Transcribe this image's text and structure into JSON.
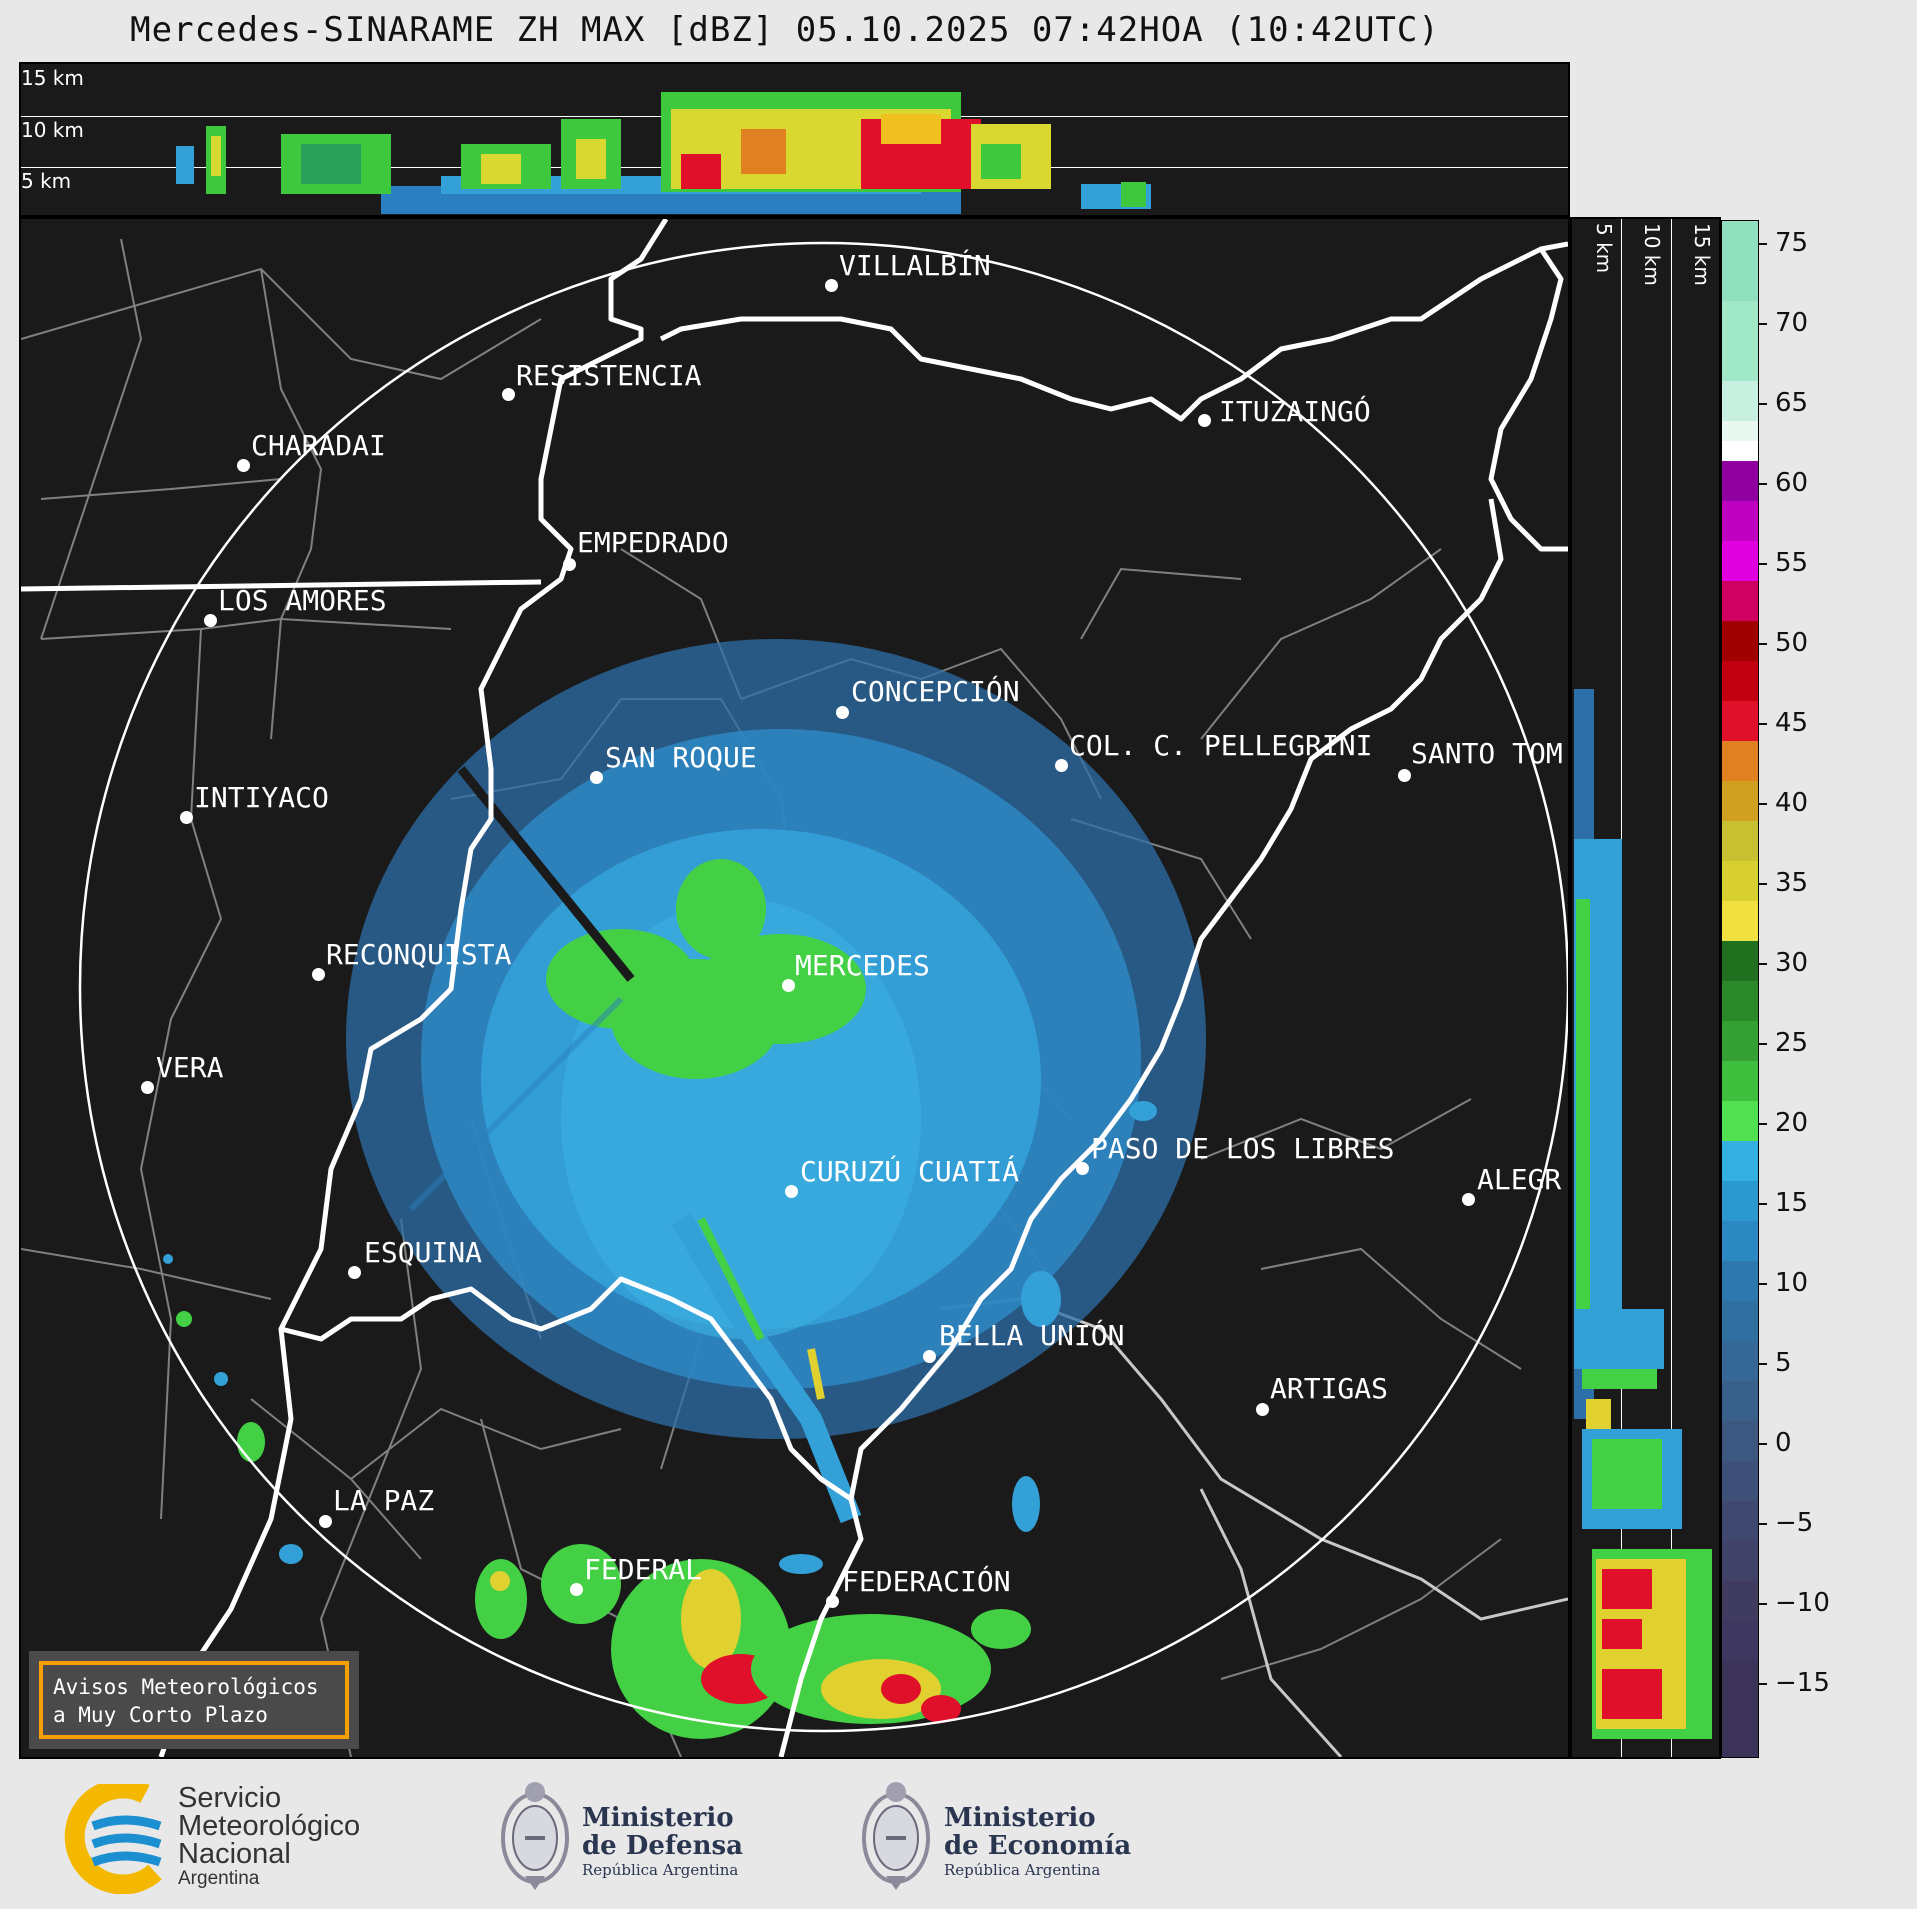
{
  "title": "Mercedes-SINARAME ZH MAX [dBZ] 05.10.2025 07:42HOA (10:42UTC)",
  "top_panel": {
    "height_labels": [
      "15 km",
      "10 km",
      "5 km"
    ]
  },
  "right_panel": {
    "height_labels": [
      "5 km",
      "10 km",
      "15 km"
    ]
  },
  "colorbar": {
    "unit": "dBZ",
    "ticks": [
      "75",
      "70",
      "65",
      "60",
      "55",
      "50",
      "45",
      "40",
      "35",
      "30",
      "25",
      "20",
      "15",
      "10",
      "5",
      "0",
      "−5",
      "−10",
      "−15"
    ]
  },
  "cities": [
    {
      "name": "VILLALBÍN"
    },
    {
      "name": "RESISTENCIA"
    },
    {
      "name": "CHARADAI"
    },
    {
      "name": "ITUZAINGÓ"
    },
    {
      "name": "EMPEDRADO"
    },
    {
      "name": "LOS AMORES"
    },
    {
      "name": "CONCEPCIÓN"
    },
    {
      "name": "SAN ROQUE"
    },
    {
      "name": "COL. C. PELLEGRINI"
    },
    {
      "name": "SANTO TOM"
    },
    {
      "name": "INTIYACO"
    },
    {
      "name": "MERCEDES"
    },
    {
      "name": "RECONQUISTA"
    },
    {
      "name": "VERA"
    },
    {
      "name": "PASO DE LOS LIBRES"
    },
    {
      "name": "CURUZÚ CUATIÁ"
    },
    {
      "name": "ALEGR"
    },
    {
      "name": "ESQUINA"
    },
    {
      "name": "BELLA UNIÓN"
    },
    {
      "name": "ARTIGAS"
    },
    {
      "name": "LA PAZ"
    },
    {
      "name": "FEDERAL"
    },
    {
      "name": "FEDERACIÓN"
    }
  ],
  "warning_box": {
    "line1": "Avisos Meteorológicos",
    "line2": "a Muy Corto Plazo"
  },
  "footer": {
    "smn": {
      "line1": "Servicio",
      "line2": "Meteorológico",
      "line3": "Nacional",
      "line4": "Argentina"
    },
    "defensa": {
      "line1": "Ministerio",
      "line2": "de Defensa",
      "line3": "República Argentina"
    },
    "economia": {
      "line1": "Ministerio",
      "line2": "de Economía",
      "line3": "República Argentina"
    }
  },
  "colors": {
    "background": "#1a1a1a",
    "border_line": "#ffffff",
    "province_line": "#808080",
    "smn_blue": "#1c8fd0",
    "smn_yellow": "#f5b800",
    "warning_orange": "#f5a000"
  }
}
